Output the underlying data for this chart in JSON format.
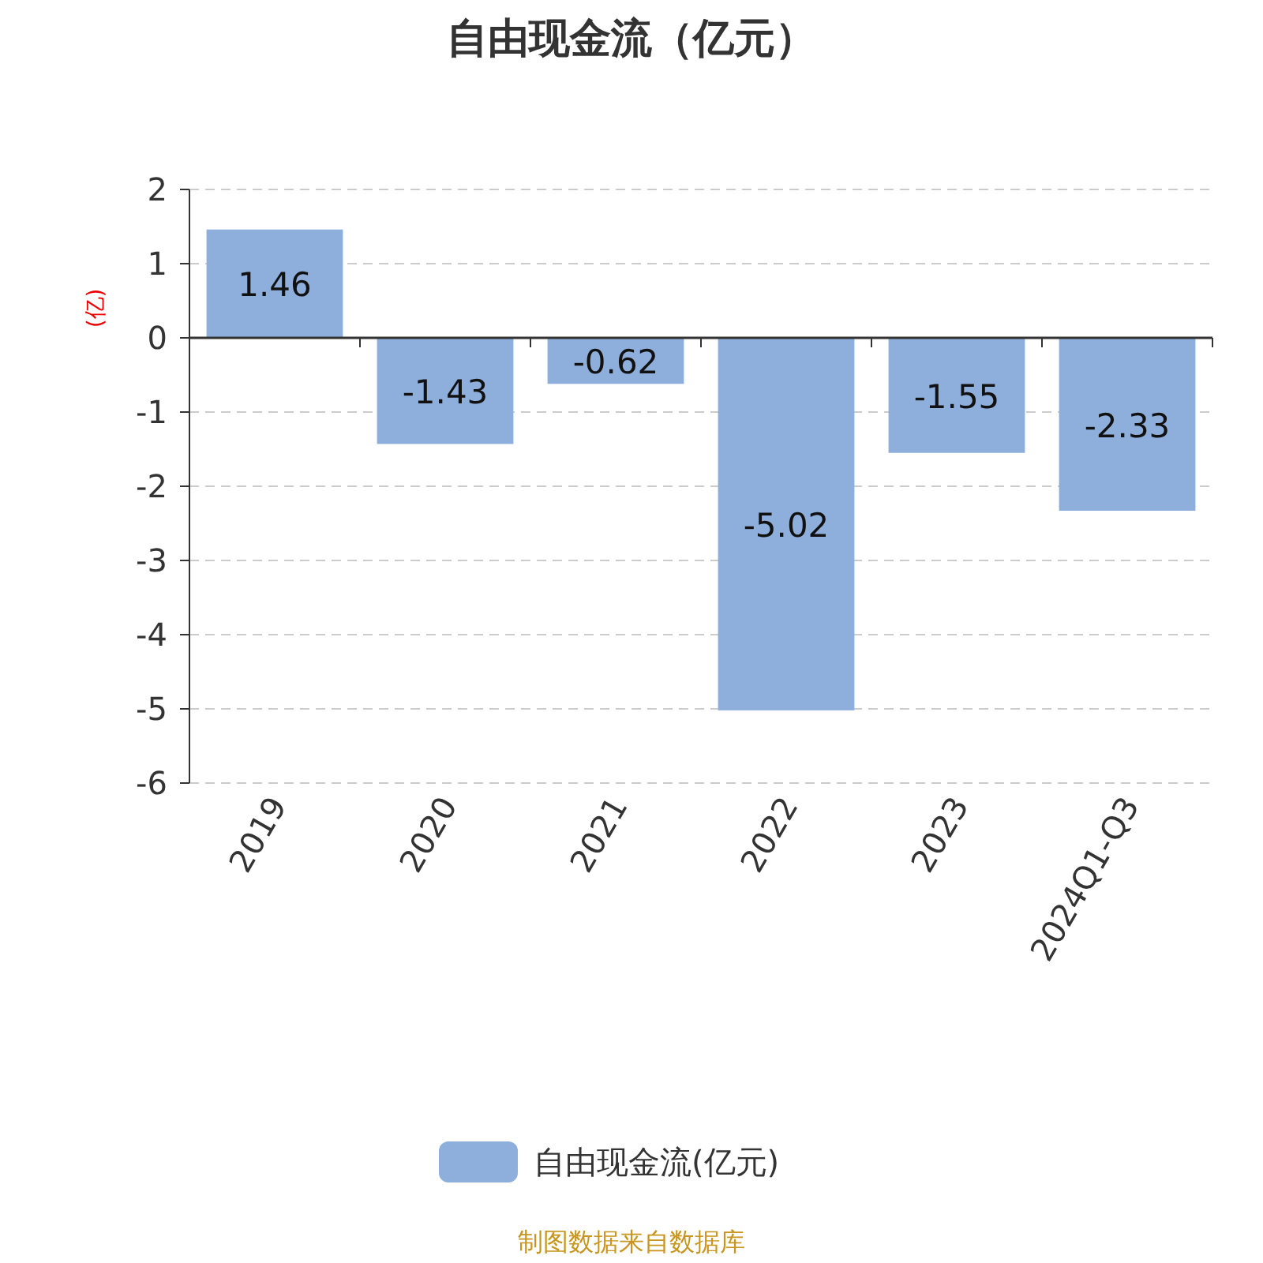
{
  "chart_data": {
    "type": "bar",
    "title": "自由现金流（亿元）",
    "ylabel": "(亿)",
    "categories": [
      "2019",
      "2020",
      "2021",
      "2022",
      "2023",
      "2024Q1-Q3"
    ],
    "series": [
      {
        "name": "自由现金流(亿元)",
        "color": "#8eaedb",
        "values": [
          1.46,
          -1.43,
          -0.62,
          -5.02,
          -1.55,
          -2.33
        ]
      }
    ],
    "ylim": [
      -6,
      2
    ],
    "yticks": [
      -6,
      -5,
      -4,
      -3,
      -2,
      -1,
      0,
      1,
      2
    ],
    "grid": "y",
    "legend": "bottom",
    "data_labels": true,
    "annotations": [
      "制图数据来自数据库"
    ]
  }
}
